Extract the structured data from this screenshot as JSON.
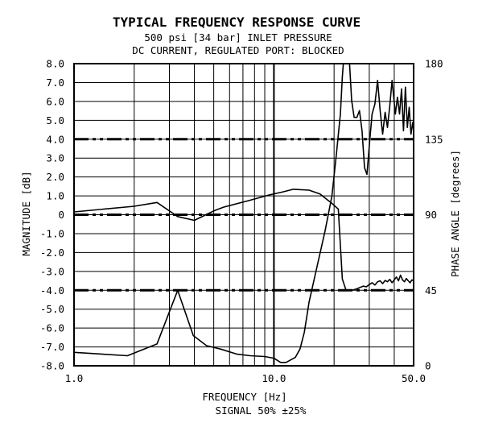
{
  "chart_data": {
    "type": "line",
    "title": "TYPICAL FREQUENCY RESPONSE CURVE",
    "subtitle_lines": [
      "500 psi [34 bar] INLET PRESSURE",
      "DC CURRENT, REGULATED PORT: BLOCKED"
    ],
    "xlabel_lines": [
      "FREQUENCY [Hz]",
      "SIGNAL 50% ±25%"
    ],
    "ylabel": "MAGNITUDE [dB]",
    "y2label": "PHASE ANGLE [degrees]",
    "x_scale": "log",
    "xlim": [
      1.0,
      50.0
    ],
    "ylim": [
      -8.0,
      8.0
    ],
    "y2lim": [
      0,
      180
    ],
    "x_tick_labels": [
      "1.0",
      "10.0",
      "50.0"
    ],
    "x_tick_values": [
      1,
      10,
      50
    ],
    "y_ticks": [
      8.0,
      7.0,
      6.0,
      5.0,
      4.0,
      3.0,
      2.0,
      1.0,
      0,
      -1.0,
      -2.0,
      -3.0,
      -4.0,
      -5.0,
      -6.0,
      -7.0,
      -8.0
    ],
    "y_tick_labels": [
      "8.0",
      "7.0",
      "6.0",
      "5.0",
      "4.0",
      "3.0",
      "2.0",
      "1.0",
      "0",
      "-1.0",
      "-2.0",
      "-3.0",
      "-4.0",
      "-5.0",
      "-6.0",
      "-7.0",
      "-8.0"
    ],
    "y2_tick_labels": [
      "180",
      "135",
      "90",
      "45",
      "0"
    ],
    "y2_tick_values": [
      180,
      135,
      90,
      45,
      0
    ],
    "reference_lines_db": [
      4.0,
      0,
      -4.0
    ],
    "grid": true,
    "series": [
      {
        "axis": "left",
        "x": [
          1.0,
          2.0,
          2.6,
          3.3,
          4.0,
          5.0,
          5.6,
          7.5,
          9.5,
          11.0,
          12.5,
          15.0,
          17.0,
          19.5,
          21.0,
          22.0,
          23.0,
          24.2,
          25.0,
          26.0,
          27.0,
          28.0,
          29.0,
          30.0,
          31.0,
          32.0,
          33.0,
          34.0,
          35.0,
          36.0,
          37.0,
          38.0,
          39.0,
          40.0,
          41.0,
          42.0,
          43.0,
          44.0,
          45.0,
          46.0,
          47.0,
          48.0,
          49.0,
          50.0
        ],
        "values": [
          0.15,
          0.45,
          0.65,
          -0.1,
          -0.3,
          0.2,
          0.4,
          0.75,
          1.05,
          1.2,
          1.35,
          1.3,
          1.1,
          0.6,
          0.3,
          -3.4,
          -4.02,
          -4.0,
          -3.98,
          -3.92,
          -3.85,
          -3.78,
          -3.82,
          -3.7,
          -3.6,
          -3.72,
          -3.55,
          -3.5,
          -3.65,
          -3.48,
          -3.55,
          -3.42,
          -3.6,
          -3.45,
          -3.3,
          -3.5,
          -3.2,
          -3.45,
          -3.55,
          -3.38,
          -3.5,
          -3.6,
          -3.45,
          -3.5
        ]
      },
      {
        "axis": "right",
        "x": [
          1.0,
          1.85,
          2.6,
          3.3,
          3.95,
          4.6,
          5.4,
          6.5,
          7.6,
          9.0,
          10.0,
          10.8,
          11.5,
          12.8,
          13.5,
          14.2,
          15.0,
          16.5,
          18.0,
          19.5,
          20.5,
          21.5,
          22.0,
          22.5,
          23.0,
          23.8,
          24.5,
          25.2,
          26.0,
          26.8,
          27.6,
          28.4,
          29.2,
          30.2,
          31.0,
          32.0,
          33.0,
          34.0,
          35.0,
          36.0,
          37.0,
          38.0,
          39.0,
          40.5,
          41.5,
          42.5,
          43.5,
          44.5,
          45.5,
          46.5,
          47.5,
          48.5,
          49.5,
          50.0
        ],
        "values": [
          8,
          6,
          13,
          45,
          18,
          12,
          10,
          7,
          6,
          5.5,
          4.5,
          2,
          2,
          5,
          10,
          20,
          38,
          60,
          80,
          101,
          125,
          150,
          172,
          188,
          190,
          184,
          158,
          148,
          148,
          152,
          140,
          118,
          114,
          135,
          150,
          156,
          170,
          152,
          138,
          151,
          142,
          155,
          170,
          150,
          160,
          150,
          165,
          140,
          166,
          142,
          154,
          138,
          145,
          140
        ]
      }
    ]
  }
}
